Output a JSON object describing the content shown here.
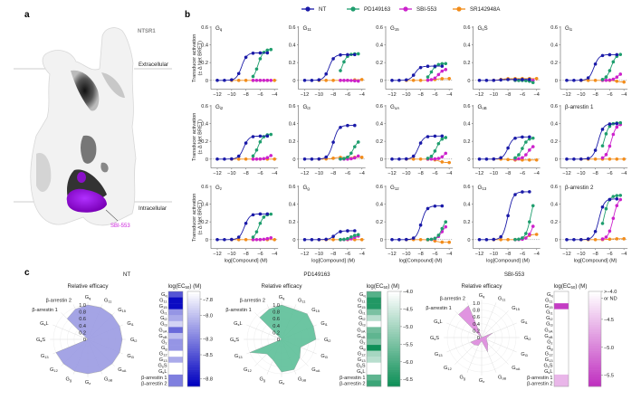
{
  "panel_labels": {
    "a": "a",
    "b": "b",
    "c": "c"
  },
  "panel_a": {
    "receptor": "NTSR1",
    "extracellular": "Extracellular",
    "intracellular": "Intracellular",
    "ligand": "SBI-553",
    "ligand_color": "#cc22dd"
  },
  "legend": [
    {
      "name": "NT",
      "color": "#1a1aa8"
    },
    {
      "name": "PD149163",
      "color": "#1f9e6e"
    },
    {
      "name": "SBI-553",
      "color": "#cc22cc"
    },
    {
      "name": "SR142948A",
      "color": "#f28c1a"
    }
  ],
  "chart_data": {
    "dose_response": {
      "type": "line",
      "xlabel": "log[Compound] (M)",
      "ylabel": [
        "Transducer activation",
        "(± Δ Net BRET)"
      ],
      "xticks": [
        "−12",
        "−10",
        "−8",
        "−6",
        "−4"
      ],
      "xtick_values": [
        -12,
        -10,
        -8,
        -6,
        -4
      ],
      "yticks": [
        "0",
        "0.2",
        "0.4",
        "0.6"
      ],
      "ytick_values": [
        0,
        0.2,
        0.4,
        0.6
      ],
      "xlim": [
        -12.5,
        -3.5
      ],
      "ylim": [
        -0.1,
        0.6
      ],
      "x_points": {
        "NT": [
          -12,
          -11,
          -10,
          -9,
          -8,
          -7,
          -6,
          -5
        ],
        "PD149163": [
          -7,
          -6.5,
          -6,
          -5.5,
          -5,
          -4.5
        ],
        "SBI-553": [
          -7,
          -6.5,
          -6,
          -5.5,
          -5,
          -4.5
        ],
        "SR142948A": [
          -10,
          -9,
          -8,
          -7,
          -6,
          -5,
          -4
        ]
      },
      "panels": [
        {
          "label": {
            "base": "G",
            "sub": "q",
            "suffix": ""
          },
          "fits": {
            "NT": {
              "top": 0.31,
              "logEC50": -8.6
            },
            "PD149163": {
              "top": 0.35,
              "logEC50": -6.3
            },
            "SBI-553": {
              "top": 0,
              "logEC50": -6
            },
            "SR142948A": {
              "top": 0,
              "logEC50": -6
            }
          }
        },
        {
          "label": {
            "base": "G",
            "sub": "11",
            "suffix": ""
          },
          "fits": {
            "NT": {
              "top": 0.29,
              "logEC50": -8.6
            },
            "PD149163": {
              "top": 0.3,
              "logEC50": -6.8
            },
            "SBI-553": {
              "top": -0.01,
              "logEC50": -5
            },
            "SR142948A": {
              "top": 0.01,
              "logEC50": -5
            }
          }
        },
        {
          "label": {
            "base": "G",
            "sub": "15",
            "suffix": ""
          },
          "fits": {
            "NT": {
              "top": 0.16,
              "logEC50": -8.8
            },
            "PD149163": {
              "top": 0.19,
              "logEC50": -6.5
            },
            "SBI-553": {
              "top": 0.13,
              "logEC50": -5.5
            },
            "SR142948A": {
              "top": 0.02,
              "logEC50": -6
            }
          }
        },
        {
          "label": {
            "base": "G",
            "sub": "s",
            "suffix": "S"
          },
          "fits": {
            "NT": {
              "top": 0.01,
              "logEC50": -9
            },
            "PD149163": {
              "top": -0.05,
              "logEC50": -4.5
            },
            "SBI-553": {
              "top": 0.0,
              "logEC50": -6
            },
            "SR142948A": {
              "top": 0.02,
              "logEC50": -9
            }
          }
        },
        {
          "label": {
            "base": "G",
            "sub": "i1",
            "suffix": ""
          },
          "fits": {
            "NT": {
              "top": 0.29,
              "logEC50": -8.2
            },
            "PD149163": {
              "top": 0.3,
              "logEC50": -5.8
            },
            "SBI-553": {
              "top": 0.1,
              "logEC50": -4.8
            },
            "SR142948A": {
              "top": -0.02,
              "logEC50": -5
            }
          }
        },
        {
          "label": {
            "base": "G",
            "sub": "i2",
            "suffix": ""
          },
          "fits": {
            "NT": {
              "top": 0.26,
              "logEC50": -8.3
            },
            "PD149163": {
              "top": 0.28,
              "logEC50": -6.3
            },
            "SBI-553": {
              "top": 0.08,
              "logEC50": -4.5
            },
            "SR142948A": {
              "top": 0.0,
              "logEC50": -6
            }
          }
        },
        {
          "label": {
            "base": "G",
            "sub": "i3",
            "suffix": ""
          },
          "fits": {
            "NT": {
              "top": 0.38,
              "logEC50": -8.0
            },
            "PD149163": {
              "top": 0.22,
              "logEC50": -5.2
            },
            "SBI-553": {
              "top": 0.07,
              "logEC50": -4.5
            },
            "SR142948A": {
              "top": 0.02,
              "logEC50": -8
            }
          }
        },
        {
          "label": {
            "base": "G",
            "sub": "oA",
            "suffix": ""
          },
          "fits": {
            "NT": {
              "top": 0.26,
              "logEC50": -8.3
            },
            "PD149163": {
              "top": 0.25,
              "logEC50": -5.8
            },
            "SBI-553": {
              "top": 0.13,
              "logEC50": -4.5
            },
            "SR142948A": {
              "top": -0.04,
              "logEC50": -5.5
            }
          }
        },
        {
          "label": {
            "base": "G",
            "sub": "oB",
            "suffix": ""
          },
          "fits": {
            "NT": {
              "top": 0.25,
              "logEC50": -8.0
            },
            "PD149163": {
              "top": 0.24,
              "logEC50": -6.0
            },
            "SBI-553": {
              "top": 0.16,
              "logEC50": -5.2
            },
            "SR142948A": {
              "top": -0.01,
              "logEC50": -8
            }
          }
        },
        {
          "label": {
            "base": "β-arrestin 1",
            "sub": "",
            "suffix": ""
          },
          "fits": {
            "NT": {
              "top": 0.4,
              "logEC50": -7.6
            },
            "PD149163": {
              "top": 0.41,
              "logEC50": -6.8
            },
            "SBI-553": {
              "top": 0.4,
              "logEC50": -5.8
            },
            "SR142948A": {
              "top": 0.0,
              "logEC50": -6
            }
          }
        },
        {
          "label": {
            "base": "G",
            "sub": "z",
            "suffix": ""
          },
          "fits": {
            "NT": {
              "top": 0.29,
              "logEC50": -8.2
            },
            "PD149163": {
              "top": 0.29,
              "logEC50": -6.2
            },
            "SBI-553": {
              "top": 0.03,
              "logEC50": -4.8
            },
            "SR142948A": {
              "top": 0.0,
              "logEC50": -6
            }
          }
        },
        {
          "label": {
            "base": "G",
            "sub": "g",
            "suffix": ""
          },
          "fits": {
            "NT": {
              "top": 0.1,
              "logEC50": -7.8
            },
            "PD149163": {
              "top": 0.06,
              "logEC50": -5.5
            },
            "SBI-553": {
              "top": 0.05,
              "logEC50": -5.0
            },
            "SR142948A": {
              "top": 0.0,
              "logEC50": -6
            }
          }
        },
        {
          "label": {
            "base": "G",
            "sub": "12",
            "suffix": ""
          },
          "fits": {
            "NT": {
              "top": 0.38,
              "logEC50": -7.9
            },
            "PD149163": {
              "top": 0.25,
              "logEC50": -5.0
            },
            "SBI-553": {
              "top": 0.18,
              "logEC50": -5.0
            },
            "SR142948A": {
              "top": -0.03,
              "logEC50": -6
            }
          }
        },
        {
          "label": {
            "base": "G",
            "sub": "13",
            "suffix": ""
          },
          "fits": {
            "NT": {
              "top": 0.54,
              "logEC50": -8.0
            },
            "PD149163": {
              "top": 0.55,
              "logEC50": -4.8
            },
            "SBI-553": {
              "top": 0.3,
              "logEC50": -4.5
            },
            "SR142948A": {
              "top": 0.06,
              "logEC50": -5.5
            }
          }
        },
        {
          "label": {
            "base": "β-arrestin 2",
            "sub": "",
            "suffix": ""
          },
          "fits": {
            "NT": {
              "top": 0.46,
              "logEC50": -7.5
            },
            "PD149163": {
              "top": 0.5,
              "logEC50": -6.8
            },
            "SBI-553": {
              "top": 0.48,
              "logEC50": -5.5
            },
            "SR142948A": {
              "top": 0.01,
              "logEC50": -6
            }
          }
        }
      ]
    },
    "radar": {
      "type": "radar",
      "title": "Relative efficacy",
      "rticks": [
        "1.0",
        "0.8",
        "0.6",
        "0.4",
        "0.2",
        "0"
      ],
      "rtick_values": [
        1.0,
        0.8,
        0.6,
        0.4,
        0.2,
        0
      ],
      "axes": [
        {
          "base": "G",
          "sub": "q",
          "suffix": ""
        },
        {
          "base": "G",
          "sub": "11",
          "suffix": ""
        },
        {
          "base": "G",
          "sub": "15",
          "suffix": ""
        },
        {
          "base": "G",
          "sub": "i1",
          "suffix": ""
        },
        {
          "base": "G",
          "sub": "i2",
          "suffix": ""
        },
        {
          "base": "G",
          "sub": "i3",
          "suffix": ""
        },
        {
          "base": "G",
          "sub": "oA",
          "suffix": ""
        },
        {
          "base": "G",
          "sub": "oB",
          "suffix": ""
        },
        {
          "base": "G",
          "sub": "z",
          "suffix": ""
        },
        {
          "base": "G",
          "sub": "g",
          "suffix": ""
        },
        {
          "base": "G",
          "sub": "12",
          "suffix": ""
        },
        {
          "base": "G",
          "sub": "13",
          "suffix": ""
        },
        {
          "base": "G",
          "sub": "s",
          "suffix": "S"
        },
        {
          "base": "G",
          "sub": "s",
          "suffix": "L"
        },
        {
          "base": "β-arrestin 1",
          "sub": "",
          "suffix": ""
        },
        {
          "base": "β-arrestin 2",
          "sub": "",
          "suffix": ""
        }
      ]
    },
    "groups": [
      {
        "name": "NT",
        "fill": "#9a9ae2",
        "radar_values": [
          1,
          1,
          1,
          1,
          1,
          1,
          1,
          1,
          1,
          1,
          1,
          1,
          0,
          0,
          0.85,
          0.95
        ],
        "heatmap": {
          "title": "log(EC50) (M)",
          "low_color": "#ffffff",
          "high_color": "#0000c0",
          "range": [
            -7.7,
            -8.9
          ],
          "ticks": [
            "−7.8",
            "−8.0",
            "−8.3",
            "−8.5",
            "−8.8"
          ],
          "tick_values": [
            -7.8,
            -8.0,
            -8.3,
            -8.5,
            -8.8
          ],
          "values": [
            -8.5,
            -8.85,
            -8.85,
            -8.2,
            -8.1,
            -7.9,
            -8.4,
            -8.0,
            -8.2,
            -8.2,
            -7.7,
            -8.1,
            null,
            null,
            -8.3,
            -8.3
          ]
        }
      },
      {
        "name": "PD149163",
        "fill": "#5cbf98",
        "radar_values": [
          1,
          0.95,
          1.05,
          1,
          1,
          0.6,
          0.75,
          0.95,
          0.95,
          0.65,
          0.6,
          1.0,
          0,
          0,
          0.9,
          0.95
        ],
        "heatmap": {
          "title": "log(EC50) (M)",
          "low_color": "#ffffff",
          "high_color": "#0f9058",
          "range": [
            -4.0,
            -6.7
          ],
          "ticks": [
            "−4.0",
            "−4.5",
            "−5.0",
            "−5.5",
            "−6.0",
            "−6.5"
          ],
          "tick_values": [
            -4.0,
            -4.5,
            -5.0,
            -5.5,
            -6.0,
            -6.5
          ],
          "values": [
            -5.9,
            -6.5,
            -6.5,
            -5.5,
            -4.8,
            null,
            -5.6,
            -5.8,
            -5.5,
            -6.7,
            -5.0,
            -4.8,
            null,
            null,
            -5.8,
            -6.2
          ]
        }
      },
      {
        "name": "SBI-553",
        "fill": "#dd88dd",
        "radar_values": [
          0,
          0,
          0,
          0.35,
          0.15,
          0.15,
          0.25,
          0.45,
          0.1,
          0.25,
          0.3,
          0.35,
          0,
          0,
          0.95,
          1.0
        ],
        "heatmap": {
          "title": "log(EC50) (M)",
          "low_color": "#ffffff",
          "high_color": "#c030c0",
          "range": [
            -4.0,
            -5.7
          ],
          "ticks": [
            ">−4.0",
            "or ND",
            "−4.5",
            "−5.0",
            "−5.5"
          ],
          "tick_values": [
            -4.0,
            -4.12,
            -4.5,
            -5.0,
            -5.5
          ],
          "values": [
            null,
            null,
            -5.6,
            null,
            null,
            null,
            null,
            null,
            null,
            null,
            null,
            null,
            null,
            null,
            -4.6,
            -4.6
          ]
        }
      }
    ]
  }
}
